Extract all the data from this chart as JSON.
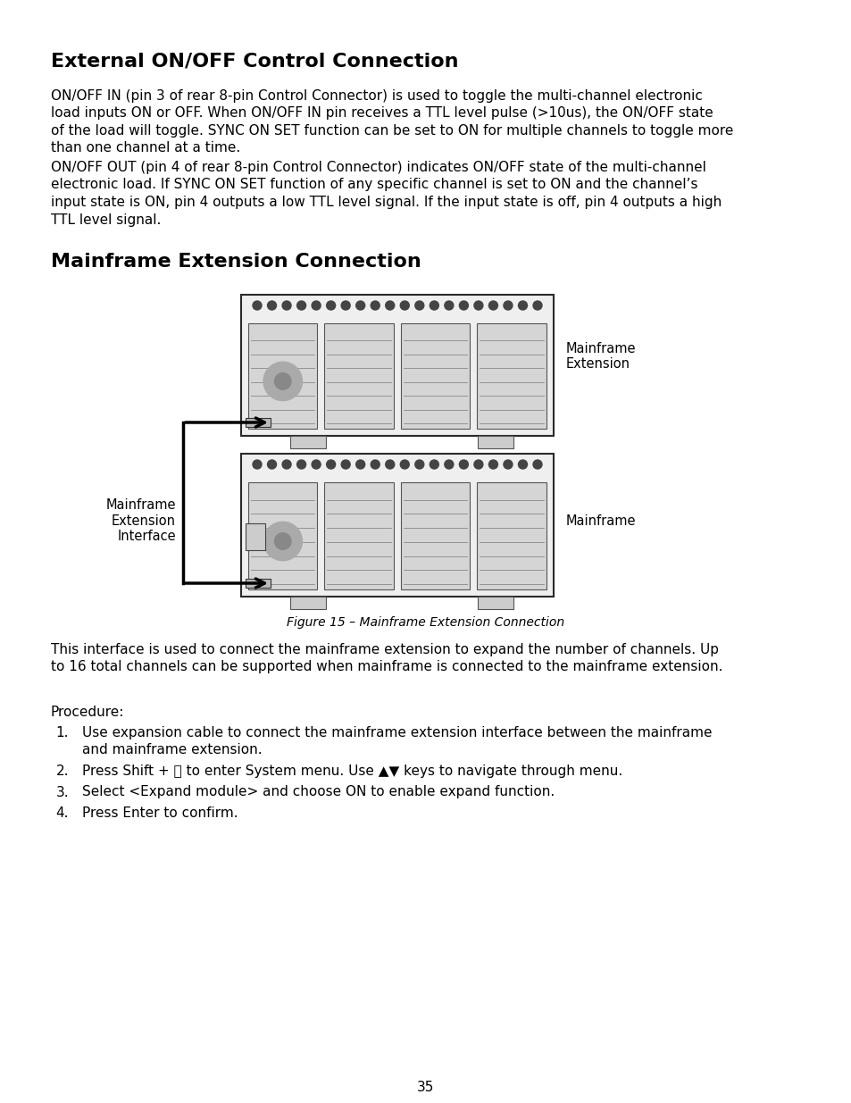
{
  "title1": "External ON/OFF Control Connection",
  "para1_line1": "ON/OFF IN (pin 3 of rear 8-pin Control Connector) is used to toggle the multi-channel electronic",
  "para1_line2": "load inputs ON or OFF. When ON/OFF IN pin receives a TTL level pulse (>10us), the ON/OFF state",
  "para1_line3": "of the load will toggle. SYNC ON SET function can be set to ON for multiple channels to toggle more",
  "para1_line4": "than one channel at a time.",
  "para2_line1": "ON/OFF OUT (pin 4 of rear 8-pin Control Connector) indicates ON/OFF state of the multi-channel",
  "para2_line2": "electronic load. If SYNC ON SET function of any specific channel is set to ON and the channel’s",
  "para2_line3": "input state is ON, pin 4 outputs a low TTL level signal. If the input state is off, pin 4 outputs a high",
  "para2_line4": "TTL level signal.",
  "title2": "Mainframe Extension Connection",
  "fig_caption": "Figure 15 – Mainframe Extension Connection",
  "para3_line1": "This interface is used to connect the mainframe extension to expand the number of channels. Up",
  "para3_line2": "to 16 total channels can be supported when mainframe is connected to the mainframe extension.",
  "procedure_label": "Procedure:",
  "step1_line1": "Use expansion cable to connect the mainframe extension interface between the mainframe",
  "step1_line2": "and mainframe extension.",
  "step2": "Press Shift + ⓦ to enter System menu. Use ▲▼ keys to navigate through menu.",
  "step3": "Select <Expand module> and choose ON to enable expand function.",
  "step4": "Press Enter to confirm.",
  "page_number": "35",
  "bg_color": "#ffffff",
  "text_color": "#000000",
  "label_mainframe_ext": "Mainframe\nExtension",
  "label_mainframe_ext_interface": "Mainframe\nExtension\nInterface",
  "label_mainframe": "Mainframe"
}
